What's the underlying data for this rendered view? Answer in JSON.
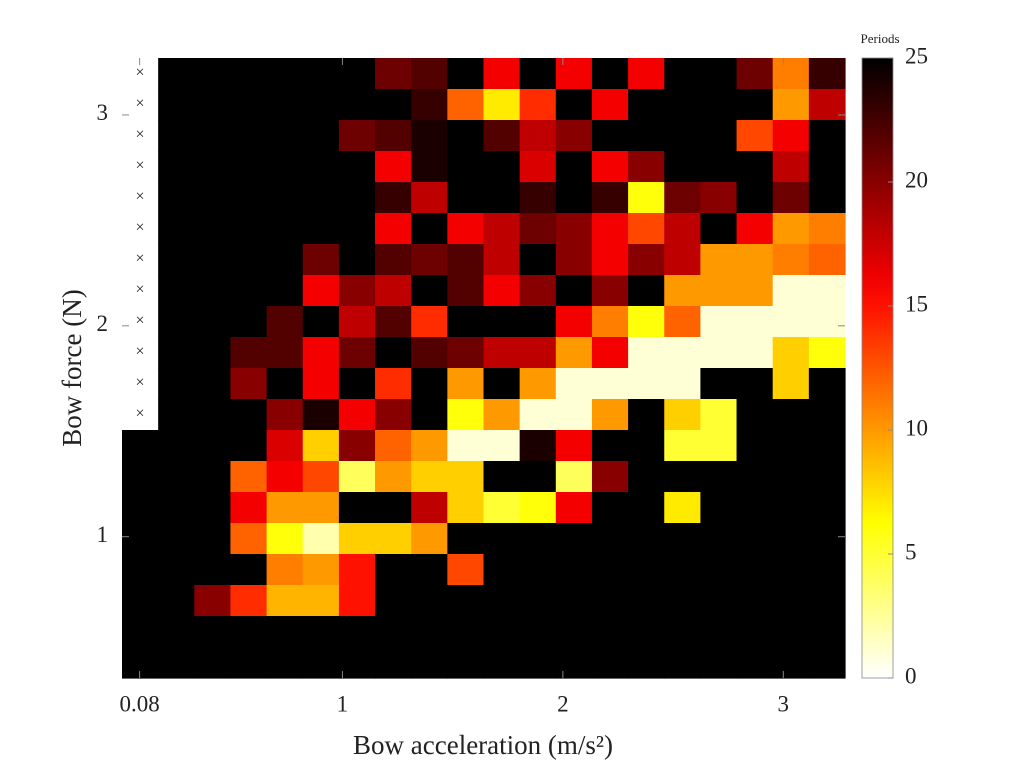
{
  "chart_data": {
    "type": "heatmap",
    "xlabel": "Bow acceleration (m/s²)",
    "ylabel": "Bow force (N)",
    "colorbar_label": "Periods",
    "colormap": "hot-reversed",
    "nan_marker": "×",
    "xlim": [
      0,
      3.28
    ],
    "ylim": [
      0.33,
      3.27
    ],
    "xticks": [
      0.08,
      1,
      2,
      3
    ],
    "yticks": [
      1,
      2,
      3
    ],
    "clim": [
      0,
      25
    ],
    "cticks": [
      0,
      5,
      10,
      15,
      20,
      25
    ],
    "z": [
      [
        null,
        25,
        25,
        25,
        25,
        25,
        25,
        21,
        22,
        25,
        16,
        25,
        16,
        25,
        16,
        25,
        25,
        21,
        11,
        23
      ],
      [
        null,
        25,
        25,
        25,
        25,
        25,
        25,
        25,
        23,
        12,
        7,
        14,
        25,
        16,
        25,
        25,
        25,
        25,
        10,
        18
      ],
      [
        null,
        25,
        25,
        25,
        25,
        25,
        21,
        22,
        24,
        25,
        22,
        18,
        20,
        25,
        25,
        25,
        25,
        13,
        16,
        25
      ],
      [
        null,
        25,
        25,
        25,
        25,
        25,
        25,
        16,
        24,
        25,
        25,
        17,
        25,
        16,
        20,
        25,
        25,
        25,
        18,
        25
      ],
      [
        null,
        25,
        25,
        25,
        25,
        25,
        25,
        23,
        18,
        25,
        25,
        23,
        25,
        23,
        6,
        21,
        20,
        25,
        21,
        25
      ],
      [
        null,
        25,
        25,
        25,
        25,
        25,
        25,
        16,
        25,
        16,
        18,
        21,
        20,
        16,
        13,
        18,
        25,
        16,
        10,
        11
      ],
      [
        null,
        25,
        25,
        25,
        25,
        21,
        25,
        22,
        21,
        22,
        18,
        25,
        20,
        16,
        20,
        18,
        10,
        10,
        11,
        12
      ],
      [
        null,
        25,
        25,
        25,
        25,
        16,
        20,
        18,
        25,
        22,
        16,
        20,
        25,
        20,
        25,
        10,
        10,
        10,
        1,
        1
      ],
      [
        null,
        25,
        25,
        25,
        22,
        25,
        18,
        22,
        14,
        25,
        25,
        25,
        16,
        11,
        6,
        12,
        1,
        1,
        1,
        1
      ],
      [
        null,
        25,
        25,
        22,
        22,
        16,
        21,
        25,
        22,
        21,
        18,
        18,
        10,
        16,
        1,
        1,
        1,
        1,
        8,
        6
      ],
      [
        null,
        25,
        25,
        20,
        25,
        16,
        25,
        14,
        25,
        10,
        25,
        10,
        1,
        1,
        1,
        1,
        25,
        25,
        8,
        25
      ],
      [
        null,
        25,
        25,
        25,
        20,
        24,
        16,
        20,
        25,
        6,
        10,
        1,
        1,
        10,
        25,
        8,
        5,
        25,
        25,
        25
      ],
      [
        25,
        25,
        25,
        25,
        17,
        8,
        20,
        12,
        10,
        1,
        1,
        24,
        16,
        25,
        25,
        5,
        5,
        25,
        25,
        25
      ],
      [
        25,
        25,
        25,
        12,
        16,
        13,
        4,
        10,
        8,
        8,
        25,
        25,
        4,
        20,
        25,
        25,
        25,
        25,
        25,
        25
      ],
      [
        25,
        25,
        25,
        16,
        10,
        10,
        25,
        25,
        18,
        8,
        5,
        6,
        16,
        25,
        25,
        7,
        25,
        25,
        25,
        25
      ],
      [
        25,
        25,
        25,
        12,
        6,
        2,
        8,
        8,
        10,
        25,
        25,
        25,
        25,
        25,
        25,
        25,
        25,
        25,
        25,
        25
      ],
      [
        25,
        25,
        25,
        25,
        11,
        10,
        15,
        25,
        25,
        13,
        25,
        25,
        25,
        25,
        25,
        25,
        25,
        25,
        25,
        25
      ],
      [
        25,
        25,
        20,
        14,
        9,
        9,
        15,
        25,
        25,
        25,
        25,
        25,
        25,
        25,
        25,
        25,
        25,
        25,
        25,
        25
      ],
      [
        25,
        25,
        25,
        25,
        25,
        25,
        25,
        25,
        25,
        25,
        25,
        25,
        25,
        25,
        25,
        25,
        25,
        25,
        25,
        25
      ],
      [
        25,
        25,
        25,
        25,
        25,
        25,
        25,
        25,
        25,
        25,
        25,
        25,
        25,
        25,
        25,
        25,
        25,
        25,
        25,
        25
      ]
    ]
  }
}
